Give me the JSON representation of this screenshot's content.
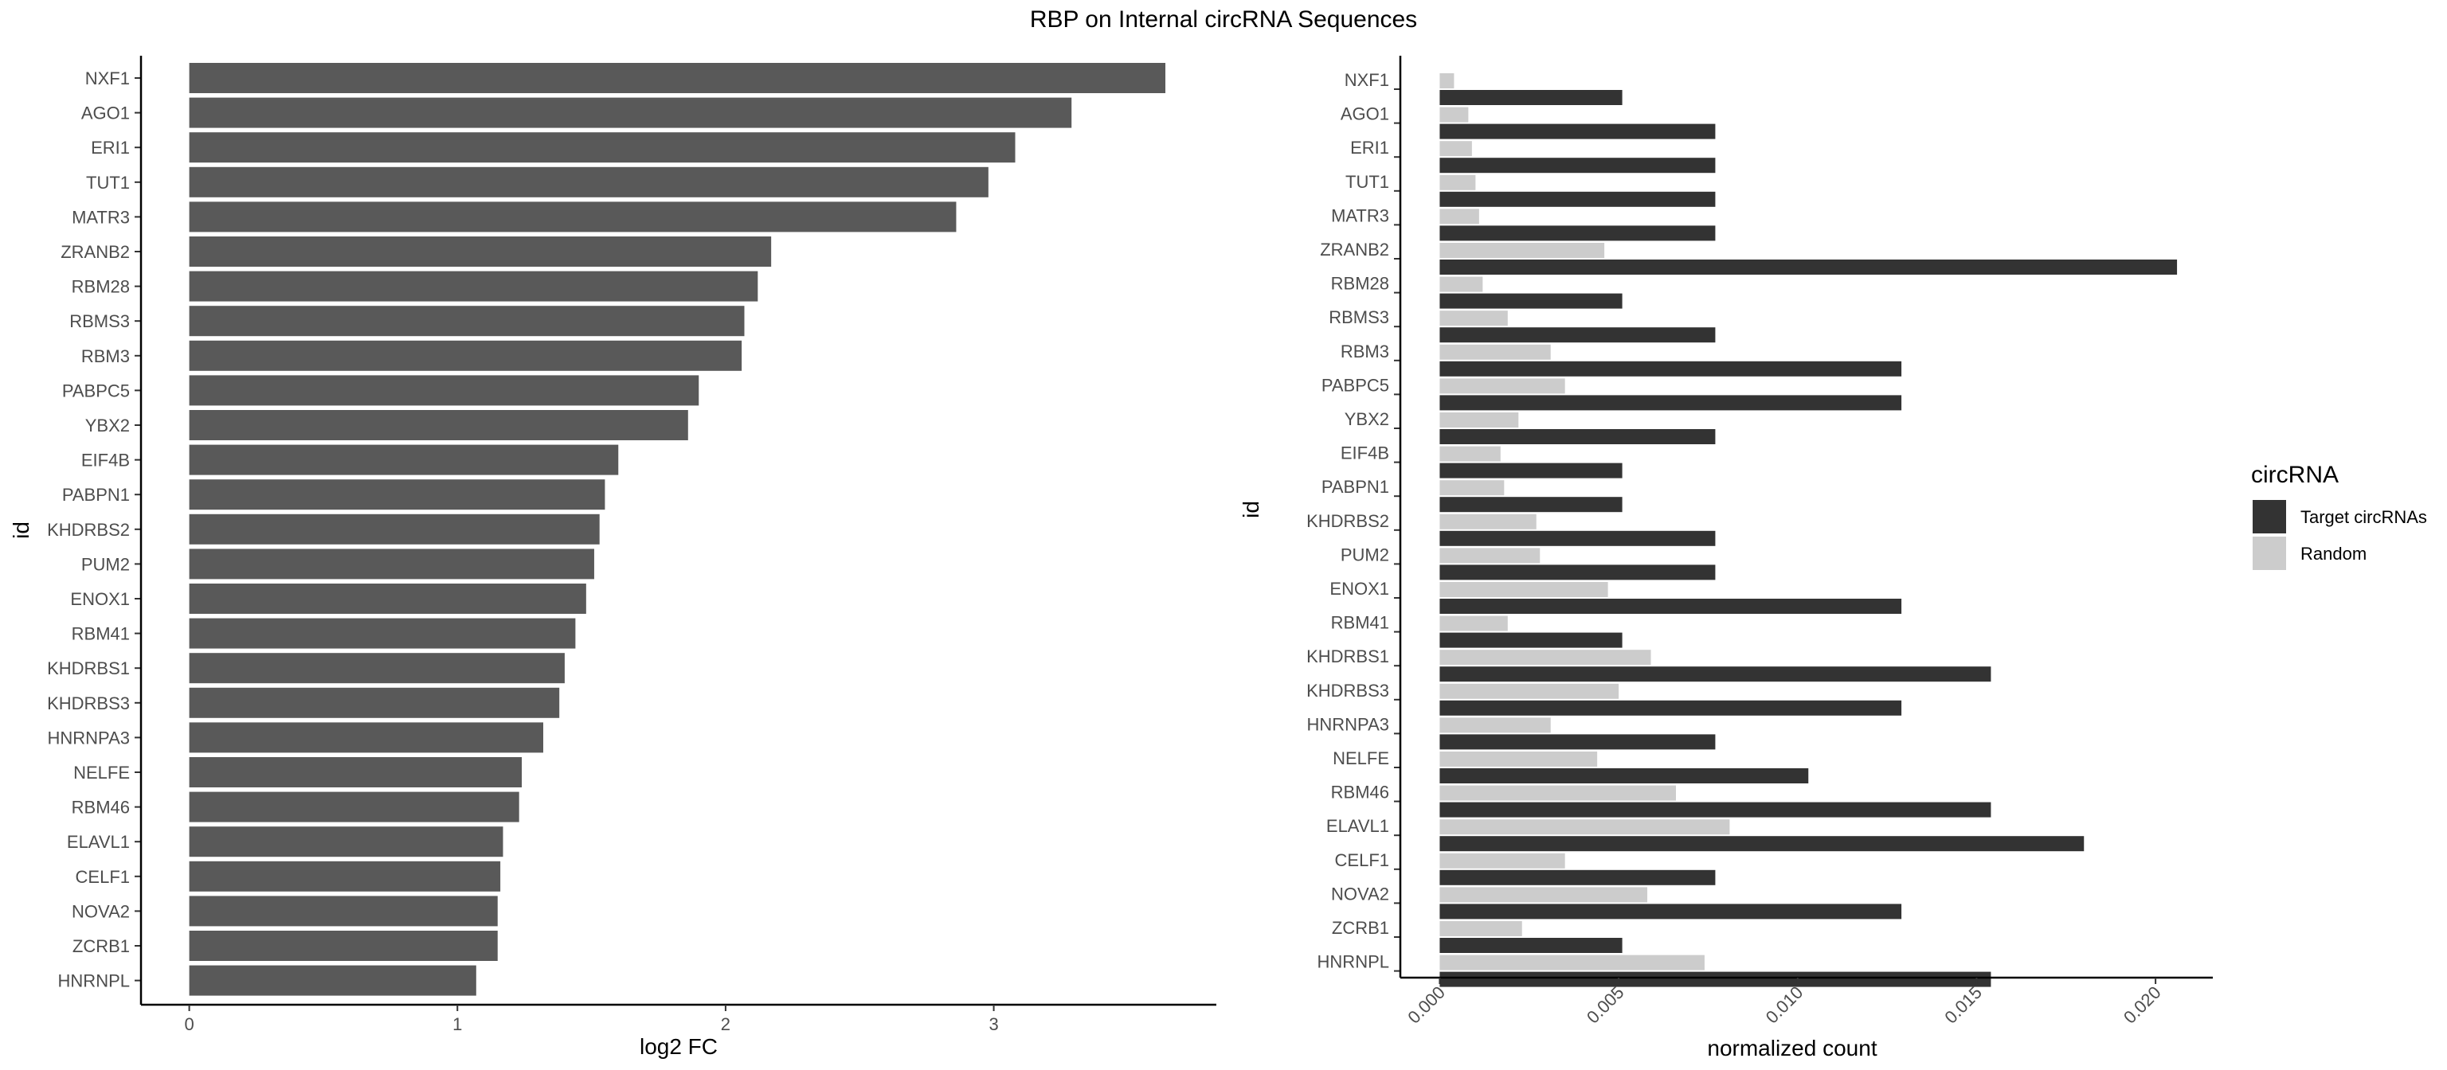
{
  "title": "RBP on Internal circRNA Sequences",
  "chart_data": [
    {
      "type": "bar",
      "orientation": "horizontal",
      "categories": [
        "NXF1",
        "AGO1",
        "ERI1",
        "TUT1",
        "MATR3",
        "ZRANB2",
        "RBM28",
        "RBMS3",
        "RBM3",
        "PABPC5",
        "YBX2",
        "EIF4B",
        "PABPN1",
        "KHDRBS2",
        "PUM2",
        "ENOX1",
        "RBM41",
        "KHDRBS1",
        "KHDRBS3",
        "HNRNPA3",
        "NELFE",
        "RBM46",
        "ELAVL1",
        "CELF1",
        "NOVA2",
        "ZCRB1",
        "HNRNPL"
      ],
      "values": [
        3.64,
        3.29,
        3.08,
        2.98,
        2.86,
        2.17,
        2.12,
        2.07,
        2.06,
        1.9,
        1.86,
        1.6,
        1.55,
        1.53,
        1.51,
        1.48,
        1.44,
        1.4,
        1.38,
        1.32,
        1.24,
        1.23,
        1.17,
        1.16,
        1.15,
        1.15,
        1.07
      ],
      "xlabel": "log2 FC",
      "ylabel": "id",
      "xlim": [
        -0.18,
        3.83
      ],
      "xticks": [
        "0",
        "1",
        "2",
        "3"
      ],
      "bar_color": "#595959"
    },
    {
      "type": "bar",
      "orientation": "horizontal",
      "grouped": true,
      "categories": [
        "NXF1",
        "AGO1",
        "ERI1",
        "TUT1",
        "MATR3",
        "ZRANB2",
        "RBM28",
        "RBMS3",
        "RBM3",
        "PABPC5",
        "YBX2",
        "EIF4B",
        "PABPN1",
        "KHDRBS2",
        "PUM2",
        "ENOX1",
        "RBM41",
        "KHDRBS1",
        "KHDRBS3",
        "HNRNPA3",
        "NELFE",
        "RBM46",
        "ELAVL1",
        "CELF1",
        "NOVA2",
        "ZCRB1",
        "HNRNPL"
      ],
      "series": [
        {
          "name": "Target circRNAs",
          "color": "#333333",
          "values": [
            0.0051,
            0.0077,
            0.0077,
            0.0077,
            0.0077,
            0.0206,
            0.0051,
            0.0077,
            0.0129,
            0.0129,
            0.0077,
            0.0051,
            0.0051,
            0.0077,
            0.0077,
            0.0129,
            0.0051,
            0.0154,
            0.0129,
            0.0077,
            0.0103,
            0.0154,
            0.018,
            0.0077,
            0.0129,
            0.0051,
            0.0154
          ]
        },
        {
          "name": "Random",
          "color": "#cccccc",
          "values": [
            0.0004,
            0.0008,
            0.0009,
            0.001,
            0.0011,
            0.0046,
            0.0012,
            0.0019,
            0.0031,
            0.0035,
            0.0022,
            0.0017,
            0.0018,
            0.0027,
            0.0028,
            0.0047,
            0.0019,
            0.0059,
            0.005,
            0.0031,
            0.0044,
            0.0066,
            0.0081,
            0.0035,
            0.0058,
            0.0023,
            0.0074
          ]
        }
      ],
      "xlabel": "normalized count",
      "ylabel": "id",
      "xlim": [
        -0.0011,
        0.0216
      ],
      "xticks": [
        "0.000",
        "0.005",
        "0.010",
        "0.015",
        "0.020"
      ],
      "legend": {
        "title": "circRNA",
        "position": "right"
      }
    }
  ]
}
